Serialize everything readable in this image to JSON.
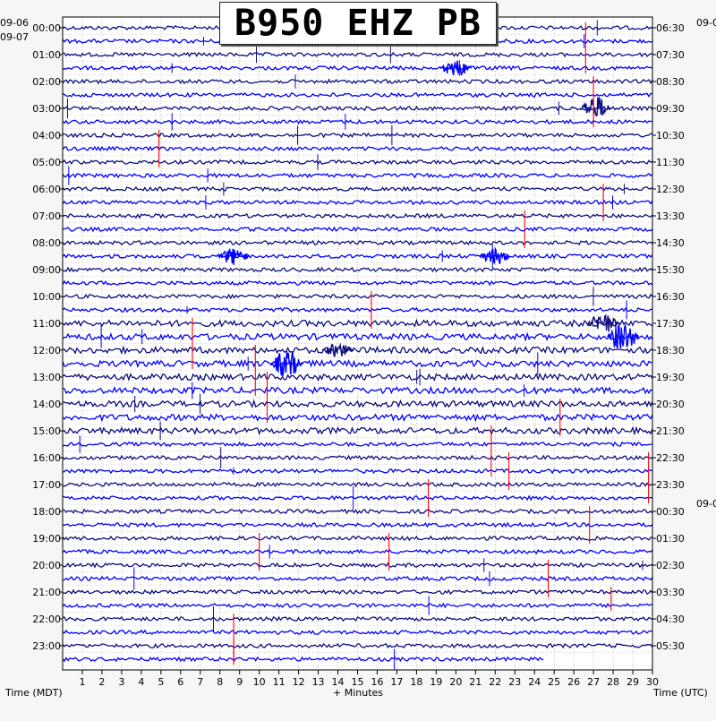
{
  "chart_data": {
    "type": "line",
    "title": "B950 EHZ PB",
    "xlabel": "+ Minutes",
    "left_axis_label": "Time (MDT)",
    "right_axis_label": "Time (UTC)",
    "x_ticks": [
      "1",
      "2",
      "3",
      "4",
      "5",
      "6",
      "7",
      "8",
      "9",
      "10",
      "11",
      "12",
      "13",
      "14",
      "15",
      "16",
      "17",
      "18",
      "19",
      "20",
      "21",
      "22",
      "23",
      "24",
      "25",
      "26",
      "27",
      "28",
      "29",
      "30"
    ],
    "x_range": [
      0,
      30
    ],
    "left_date_top": "09-06",
    "left_date_start": "09-07",
    "right_date_top": "09-0",
    "right_date_mid": "09-0",
    "left_hour_labels": [
      "00:00",
      "01:00",
      "02:00",
      "03:00",
      "04:00",
      "05:00",
      "06:00",
      "07:00",
      "08:00",
      "09:00",
      "10:00",
      "11:00",
      "12:00",
      "13:00",
      "14:00",
      "15:00",
      "16:00",
      "17:00",
      "18:00",
      "19:00",
      "20:00",
      "21:00",
      "22:00",
      "23:00"
    ],
    "right_hour_labels": [
      "06:30",
      "07:30",
      "08:30",
      "09:30",
      "10:30",
      "11:30",
      "12:30",
      "13:30",
      "14:30",
      "15:30",
      "16:30",
      "17:30",
      "18:30",
      "19:30",
      "20:30",
      "21:30",
      "22:30",
      "23:30",
      "00:30",
      "01:30",
      "02:30",
      "03:30",
      "04:30",
      "05:30"
    ],
    "trace_count": 48,
    "minutes_per_trace": 30,
    "last_trace_end_minute": 24.5,
    "trace_colors": [
      "#0d0d80",
      "#0000ff"
    ],
    "event_color": "#ff0000",
    "gridlines": true
  }
}
